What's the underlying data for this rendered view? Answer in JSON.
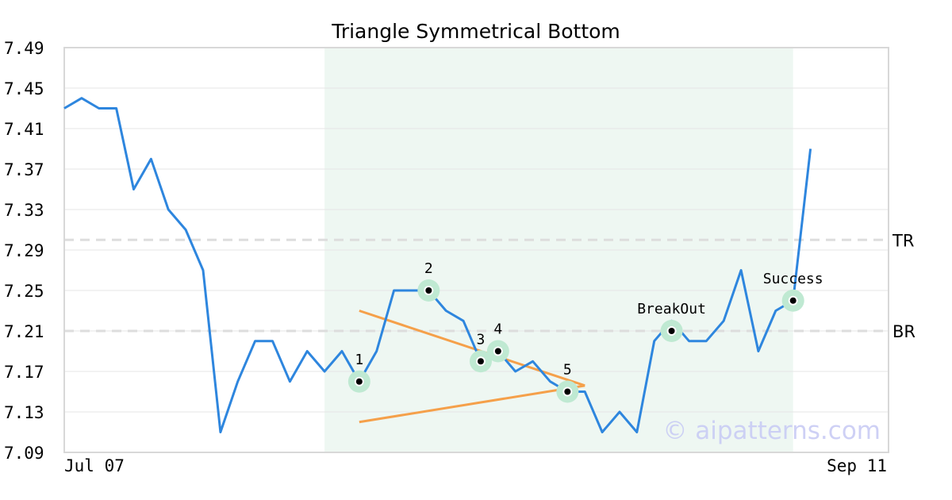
{
  "chart_data": {
    "type": "line",
    "title": "Triangle Symmetrical Bottom",
    "xlabel": "",
    "ylabel": "",
    "ylim": [
      7.09,
      7.49
    ],
    "y_ticks": [
      "7.49",
      "7.45",
      "7.41",
      "7.37",
      "7.33",
      "7.29",
      "7.25",
      "7.21",
      "7.17",
      "7.13",
      "7.09"
    ],
    "x_tick_labels": [
      "Jul 07",
      "Sep 11"
    ],
    "grid": true,
    "colors": {
      "line": "#2e86de",
      "trend": "#f5a04a",
      "highlight": "#eef7f2",
      "marker_ring": "#bfe9d2",
      "reference": "#dddddd",
      "watermark": "#c9ccf5"
    },
    "series": [
      {
        "values": [
          7.43,
          7.44,
          7.43,
          7.43,
          7.35,
          7.38,
          7.33,
          7.31,
          7.27,
          7.11,
          7.16,
          7.2,
          7.2,
          7.16,
          7.19,
          7.17,
          7.19,
          7.16,
          7.19,
          7.25,
          7.25,
          7.25,
          7.23,
          7.22,
          7.18,
          7.19,
          7.17,
          7.18,
          7.16,
          7.15,
          7.15,
          7.11,
          7.13,
          7.11,
          7.2,
          7.22,
          7.2,
          7.2,
          7.22,
          7.27,
          7.19,
          7.23,
          7.24,
          7.39
        ]
      }
    ],
    "highlight_range": [
      15,
      42
    ],
    "reference_lines": [
      {
        "label": "TR",
        "value": 7.3
      },
      {
        "label": "BR",
        "value": 7.21
      }
    ],
    "trend_lines": [
      {
        "from": [
          17,
          7.23
        ],
        "to": [
          30,
          7.156
        ]
      },
      {
        "from": [
          17,
          7.12
        ],
        "to": [
          30,
          7.156
        ]
      }
    ],
    "markers": [
      {
        "label": "1",
        "index": 17,
        "value": 7.16
      },
      {
        "label": "2",
        "index": 21,
        "value": 7.25
      },
      {
        "label": "3",
        "index": 24,
        "value": 7.18
      },
      {
        "label": "4",
        "index": 25,
        "value": 7.19
      },
      {
        "label": "5",
        "index": 29,
        "value": 7.15
      },
      {
        "label": "BreakOut",
        "index": 35,
        "value": 7.21
      },
      {
        "label": "Success",
        "index": 42,
        "value": 7.24
      }
    ],
    "watermark": "© aipatterns.com"
  }
}
